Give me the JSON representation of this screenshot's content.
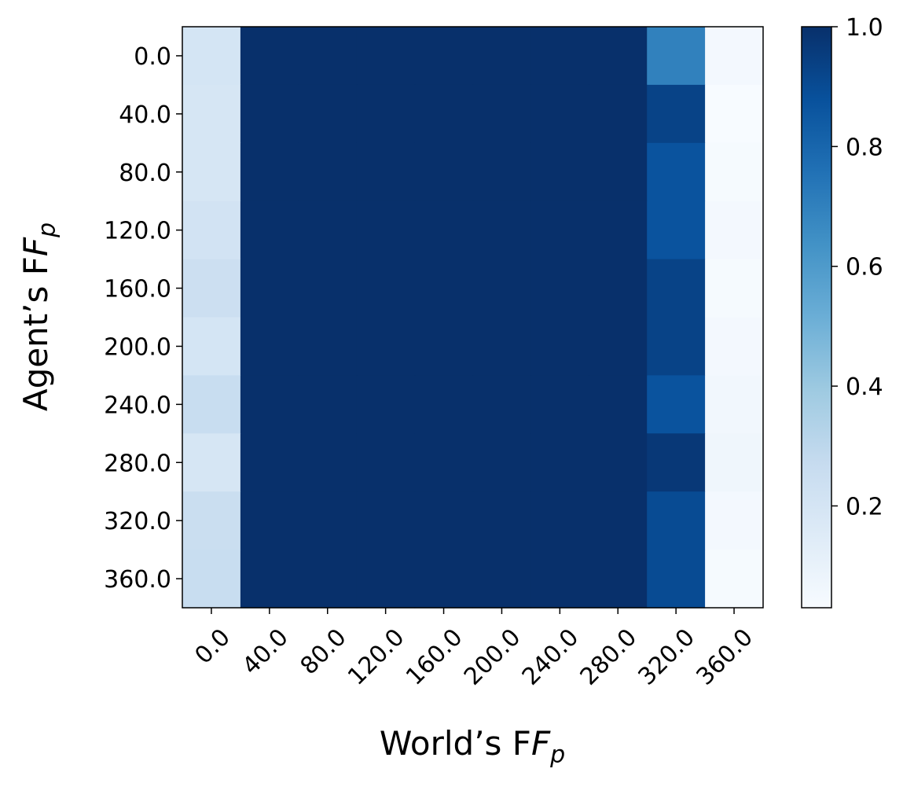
{
  "chart_data": {
    "type": "heatmap",
    "title": "",
    "xlabel": "World’s F",
    "xlabel_sub": "p",
    "ylabel": "Agent’s F",
    "ylabel_sub": "p",
    "x_categories": [
      "0.0",
      "40.0",
      "80.0",
      "120.0",
      "160.0",
      "200.0",
      "240.0",
      "280.0",
      "320.0",
      "360.0"
    ],
    "y_categories": [
      "0.0",
      "40.0",
      "80.0",
      "120.0",
      "160.0",
      "200.0",
      "240.0",
      "280.0",
      "320.0",
      "360.0"
    ],
    "values": [
      [
        0.2,
        1.0,
        1.0,
        1.0,
        1.0,
        1.0,
        1.0,
        1.0,
        0.7,
        0.05
      ],
      [
        0.19,
        1.0,
        1.0,
        1.0,
        1.0,
        1.0,
        1.0,
        1.0,
        0.93,
        0.03
      ],
      [
        0.19,
        1.0,
        1.0,
        1.0,
        1.0,
        1.0,
        1.0,
        1.0,
        0.87,
        0.04
      ],
      [
        0.21,
        1.0,
        1.0,
        1.0,
        1.0,
        1.0,
        1.0,
        1.0,
        0.87,
        0.05
      ],
      [
        0.24,
        1.0,
        1.0,
        1.0,
        1.0,
        1.0,
        1.0,
        1.0,
        0.93,
        0.04
      ],
      [
        0.2,
        1.0,
        1.0,
        1.0,
        1.0,
        1.0,
        1.0,
        1.0,
        0.93,
        0.05
      ],
      [
        0.26,
        1.0,
        1.0,
        1.0,
        1.0,
        1.0,
        1.0,
        1.0,
        0.87,
        0.06
      ],
      [
        0.19,
        1.0,
        1.0,
        1.0,
        1.0,
        1.0,
        1.0,
        1.0,
        0.97,
        0.07
      ],
      [
        0.25,
        1.0,
        1.0,
        1.0,
        1.0,
        1.0,
        1.0,
        1.0,
        0.9,
        0.05
      ],
      [
        0.26,
        1.0,
        1.0,
        1.0,
        1.0,
        1.0,
        1.0,
        1.0,
        0.9,
        0.04
      ]
    ],
    "colormap": "Blues",
    "vmin": 0.03,
    "vmax": 1.0,
    "colorbar_ticks": [
      "0.2",
      "0.4",
      "0.6",
      "0.8",
      "1.0"
    ]
  }
}
